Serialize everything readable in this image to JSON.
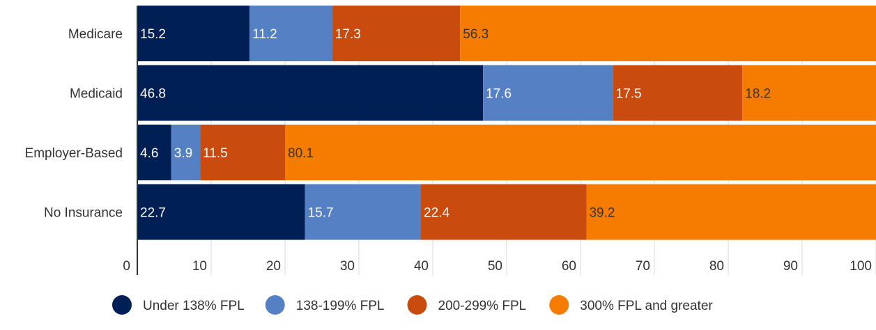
{
  "chart_data": {
    "type": "bar",
    "orientation": "horizontal",
    "stacked": true,
    "categories": [
      "Medicare",
      "Medicaid",
      "Employer-Based",
      "No Insurance"
    ],
    "series": [
      {
        "name": "Under 138% FPL",
        "color": "#001f54",
        "label_color": "#ffffff",
        "values": [
          15.2,
          46.8,
          4.6,
          22.7
        ]
      },
      {
        "name": "138-199% FPL",
        "color": "#5580c4",
        "label_color": "#ffffff",
        "values": [
          11.2,
          17.6,
          3.9,
          15.7
        ]
      },
      {
        "name": "200-299% FPL",
        "color": "#c94c0e",
        "label_color": "#ffffff",
        "values": [
          17.3,
          17.5,
          11.5,
          22.4
        ]
      },
      {
        "name": "300% FPL and greater",
        "color": "#f57c00",
        "label_color": "#333333",
        "values": [
          56.3,
          18.2,
          80.1,
          39.2
        ]
      }
    ],
    "xlim": [
      0,
      100
    ],
    "xticks": [
      "0",
      "10",
      "20",
      "30",
      "40",
      "50",
      "60",
      "70",
      "80",
      "90",
      "100"
    ],
    "grid": true,
    "legend_position": "bottom"
  }
}
